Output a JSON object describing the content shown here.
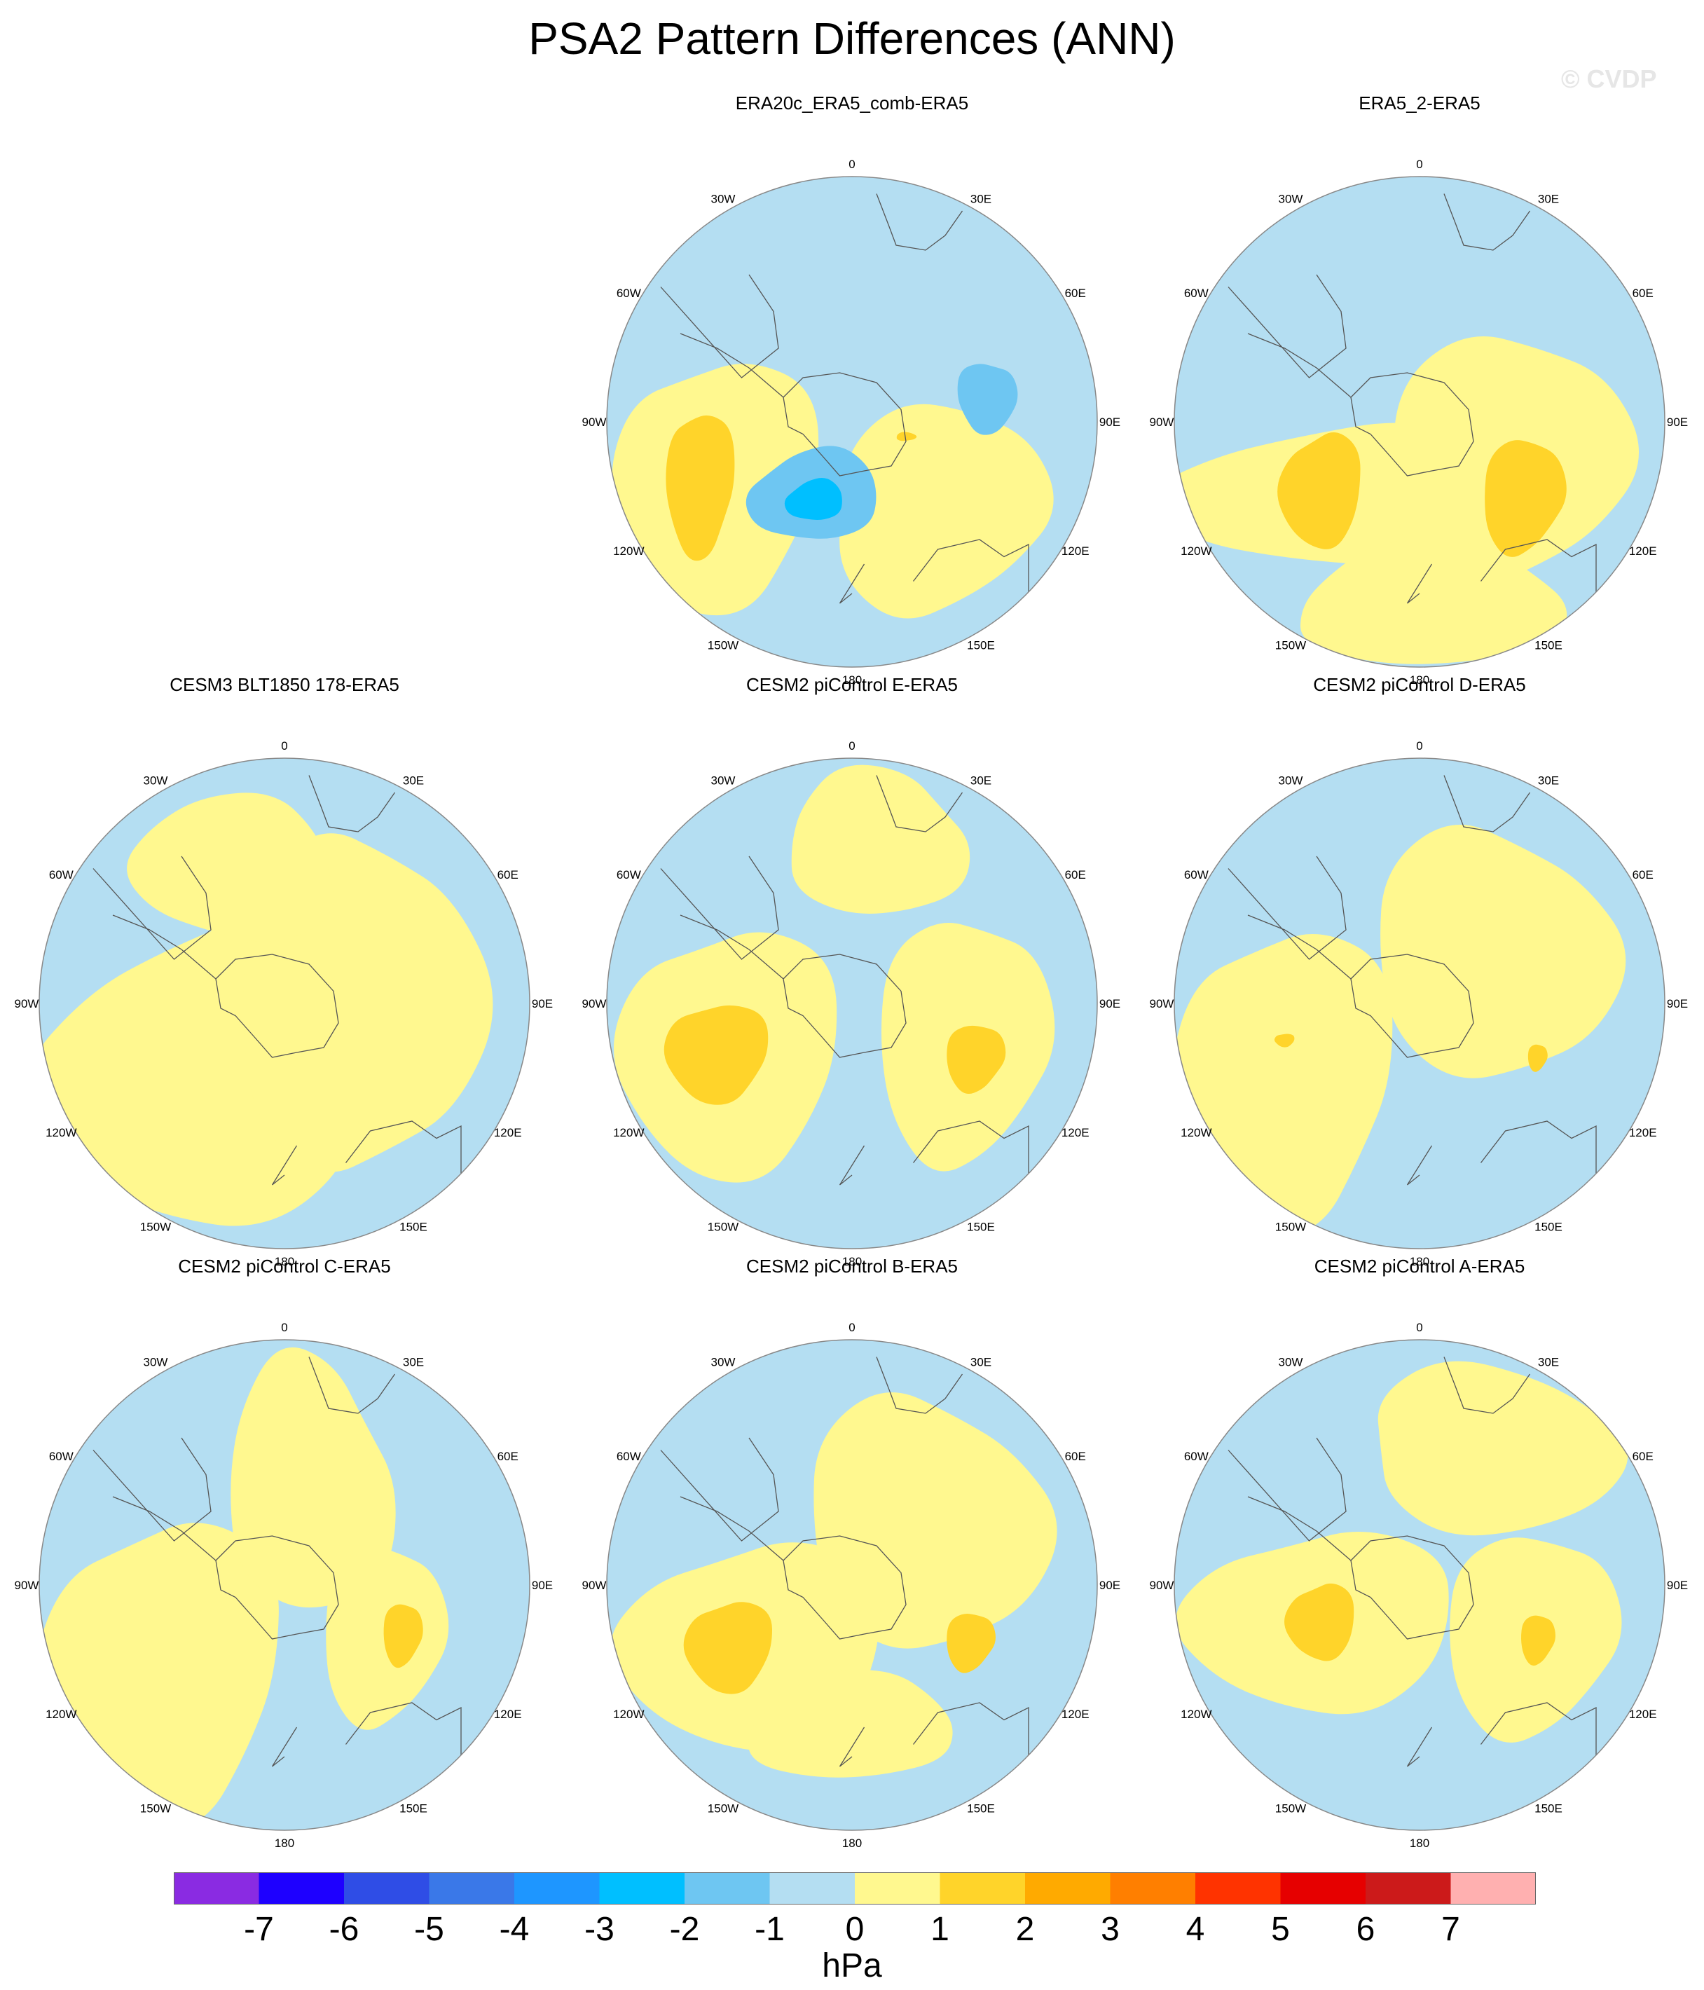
{
  "figure": {
    "title": "PSA2 Pattern Differences (ANN)",
    "watermark": "© CVDP"
  },
  "longitude_labels": [
    "0",
    "30E",
    "60E",
    "90E",
    "120E",
    "150E",
    "180",
    "150W",
    "120W",
    "90W",
    "60W",
    "30W"
  ],
  "colors": {
    "neg_1": "#b4def2",
    "pos_1": "#fff88f",
    "pos_2": "#ffd42a",
    "neg_2": "#6ec6f2",
    "neg_3": "#00bfff",
    "coast": "#555555",
    "border": "#888888"
  },
  "panels": [
    {
      "id": "era20c",
      "title": "ERA20c_ERA5_comb-ERA5",
      "features": [
        {
          "level": "pos_1",
          "shape": "blob",
          "at": [
            -0.55,
            0.25
          ],
          "size": [
            0.42,
            0.55
          ]
        },
        {
          "level": "pos_1",
          "shape": "blob",
          "at": [
            0.35,
            0.35
          ],
          "size": [
            0.45,
            0.45
          ]
        },
        {
          "level": "pos_2",
          "shape": "blob",
          "at": [
            -0.62,
            0.25
          ],
          "size": [
            0.14,
            0.32
          ]
        },
        {
          "level": "neg_2",
          "shape": "blob",
          "at": [
            -0.15,
            0.3
          ],
          "size": [
            0.27,
            0.2
          ]
        },
        {
          "level": "neg_3",
          "shape": "blob",
          "at": [
            -0.15,
            0.32
          ],
          "size": [
            0.12,
            0.09
          ]
        },
        {
          "level": "neg_2",
          "shape": "blob",
          "at": [
            0.55,
            -0.1
          ],
          "size": [
            0.12,
            0.16
          ]
        },
        {
          "level": "pos_2",
          "shape": "blob",
          "at": [
            0.22,
            0.06
          ],
          "size": [
            0.04,
            0.02
          ]
        }
      ]
    },
    {
      "id": "era5_2",
      "title": "ERA5_2-ERA5",
      "features": [
        {
          "level": "pos_1",
          "shape": "blob",
          "at": [
            -0.3,
            0.3
          ],
          "size": [
            0.75,
            0.3
          ]
        },
        {
          "level": "pos_1",
          "shape": "blob",
          "at": [
            0.35,
            0.15
          ],
          "size": [
            0.5,
            0.55
          ]
        },
        {
          "level": "pos_1",
          "shape": "blob",
          "at": [
            0.05,
            0.75
          ],
          "size": [
            0.6,
            0.25
          ]
        },
        {
          "level": "pos_2",
          "shape": "blob",
          "at": [
            -0.4,
            0.28
          ],
          "size": [
            0.17,
            0.25
          ]
        },
        {
          "level": "pos_2",
          "shape": "blob",
          "at": [
            0.42,
            0.3
          ],
          "size": [
            0.17,
            0.25
          ]
        }
      ]
    },
    {
      "id": "cesm3",
      "title": "CESM3 BLT1850 178-ERA5",
      "features": [
        {
          "level": "pos_1",
          "shape": "blob",
          "at": [
            -0.3,
            0.3
          ],
          "size": [
            0.7,
            0.65
          ]
        },
        {
          "level": "pos_1",
          "shape": "blob",
          "at": [
            0.3,
            0.0
          ],
          "size": [
            0.5,
            0.75
          ]
        },
        {
          "level": "pos_1",
          "shape": "blob",
          "at": [
            -0.2,
            -0.55
          ],
          "size": [
            0.45,
            0.3
          ]
        }
      ]
    },
    {
      "id": "cesm2_e",
      "title": "CESM2 piControl E-ERA5",
      "features": [
        {
          "level": "pos_1",
          "shape": "blob",
          "at": [
            -0.5,
            0.2
          ],
          "size": [
            0.45,
            0.55
          ]
        },
        {
          "level": "pos_1",
          "shape": "blob",
          "at": [
            0.45,
            0.15
          ],
          "size": [
            0.35,
            0.55
          ]
        },
        {
          "level": "pos_1",
          "shape": "blob",
          "at": [
            0.1,
            -0.65
          ],
          "size": [
            0.4,
            0.3
          ]
        },
        {
          "level": "pos_2",
          "shape": "blob",
          "at": [
            -0.55,
            0.2
          ],
          "size": [
            0.21,
            0.22
          ]
        },
        {
          "level": "pos_2",
          "shape": "blob",
          "at": [
            0.5,
            0.22
          ],
          "size": [
            0.12,
            0.15
          ]
        }
      ]
    },
    {
      "id": "cesm2_d",
      "title": "CESM2 piControl D-ERA5",
      "features": [
        {
          "level": "pos_1",
          "shape": "blob",
          "at": [
            -0.55,
            0.3
          ],
          "size": [
            0.45,
            0.65
          ]
        },
        {
          "level": "pos_1",
          "shape": "blob",
          "at": [
            0.3,
            -0.2
          ],
          "size": [
            0.5,
            0.55
          ]
        },
        {
          "level": "pos_2",
          "shape": "blob",
          "at": [
            -0.55,
            0.15
          ],
          "size": [
            0.04,
            0.03
          ]
        },
        {
          "level": "pos_2",
          "shape": "blob",
          "at": [
            0.48,
            0.22
          ],
          "size": [
            0.04,
            0.06
          ]
        }
      ]
    },
    {
      "id": "cesm2_c",
      "title": "CESM2 piControl C-ERA5",
      "features": [
        {
          "level": "pos_1",
          "shape": "blob",
          "at": [
            -0.5,
            0.35
          ],
          "size": [
            0.5,
            0.65
          ]
        },
        {
          "level": "pos_1",
          "shape": "blob",
          "at": [
            0.1,
            -0.4
          ],
          "size": [
            0.35,
            0.55
          ]
        },
        {
          "level": "pos_1",
          "shape": "blob",
          "at": [
            0.4,
            0.2
          ],
          "size": [
            0.25,
            0.4
          ]
        },
        {
          "level": "pos_2",
          "shape": "blob",
          "at": [
            0.48,
            0.2
          ],
          "size": [
            0.08,
            0.14
          ]
        }
      ]
    },
    {
      "id": "cesm2_b",
      "title": "CESM2 piControl B-ERA5",
      "features": [
        {
          "level": "pos_1",
          "shape": "blob",
          "at": [
            -0.4,
            0.25
          ],
          "size": [
            0.55,
            0.45
          ]
        },
        {
          "level": "pos_1",
          "shape": "blob",
          "at": [
            0.3,
            -0.25
          ],
          "size": [
            0.5,
            0.55
          ]
        },
        {
          "level": "pos_1",
          "shape": "blob",
          "at": [
            0.0,
            0.58
          ],
          "size": [
            0.45,
            0.22
          ]
        },
        {
          "level": "pos_2",
          "shape": "blob",
          "at": [
            -0.5,
            0.25
          ],
          "size": [
            0.18,
            0.2
          ]
        },
        {
          "level": "pos_2",
          "shape": "blob",
          "at": [
            0.48,
            0.23
          ],
          "size": [
            0.1,
            0.13
          ]
        }
      ]
    },
    {
      "id": "cesm2_a",
      "title": "CESM2 piControl A-ERA5",
      "features": [
        {
          "level": "pos_1",
          "shape": "blob",
          "at": [
            -0.4,
            0.15
          ],
          "size": [
            0.55,
            0.4
          ]
        },
        {
          "level": "pos_1",
          "shape": "blob",
          "at": [
            0.3,
            -0.55
          ],
          "size": [
            0.55,
            0.35
          ]
        },
        {
          "level": "pos_1",
          "shape": "blob",
          "at": [
            0.45,
            0.2
          ],
          "size": [
            0.35,
            0.45
          ]
        },
        {
          "level": "pos_2",
          "shape": "blob",
          "at": [
            -0.4,
            0.15
          ],
          "size": [
            0.14,
            0.17
          ]
        },
        {
          "level": "pos_2",
          "shape": "blob",
          "at": [
            0.48,
            0.22
          ],
          "size": [
            0.07,
            0.11
          ]
        }
      ]
    }
  ],
  "colorbar": {
    "colors": [
      "#8a2be2",
      "#1e00ff",
      "#2f4de6",
      "#3a78e8",
      "#1e96ff",
      "#00bfff",
      "#6ec6f2",
      "#b4def2",
      "#fff88f",
      "#ffd42a",
      "#ffaa00",
      "#ff7f00",
      "#ff3300",
      "#e60000",
      "#cc1a1a",
      "#ffb0b0"
    ],
    "ticks": [
      "-7",
      "-6",
      "-5",
      "-4",
      "-3",
      "-2",
      "-1",
      "0",
      "1",
      "2",
      "3",
      "4",
      "5",
      "6",
      "7"
    ],
    "units": "hPa"
  }
}
